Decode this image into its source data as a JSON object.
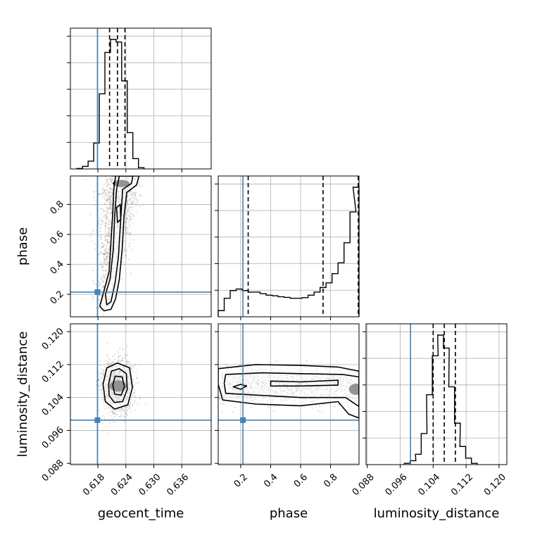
{
  "chart_data": {
    "type": "corner",
    "parameters": [
      "geocent_time",
      "phase",
      "luminosity_distance"
    ],
    "truths": {
      "geocent_time": 0.6179,
      "phase": 0.215,
      "luminosity_distance": 0.0985
    },
    "quantile_lines": {
      "geocent_time": [
        0.6205,
        0.6222,
        0.6238
      ],
      "phase": [
        0.25,
        0.75,
        0.985
      ],
      "luminosity_distance": [
        0.104,
        0.1067,
        0.1094
      ]
    },
    "axes": {
      "geocent_time": {
        "range": [
          0.6121,
          0.6423
        ],
        "ticks": [
          0.618,
          0.624,
          0.63,
          0.636
        ],
        "tick_labels": [
          "0.618",
          "0.624",
          "0.630",
          "0.636"
        ],
        "label": "geocent_time"
      },
      "phase": {
        "range": [
          0.05,
          0.99
        ],
        "ticks": [
          0.2,
          0.4,
          0.6,
          0.8
        ],
        "tick_labels": [
          "0.2",
          "0.4",
          "0.6",
          "0.8"
        ],
        "label": "phase"
      },
      "luminosity_distance": {
        "range": [
          0.0877,
          0.1219
        ],
        "ticks": [
          0.088,
          0.096,
          0.104,
          0.112,
          0.12
        ],
        "tick_labels": [
          "0.088",
          "0.096",
          "0.104",
          "0.112",
          "0.120"
        ],
        "label": "luminosity_distance"
      }
    },
    "histograms": {
      "geocent_time": {
        "x": [
          0.6141,
          0.6153,
          0.6165,
          0.6177,
          0.6189,
          0.6201,
          0.6213,
          0.6225,
          0.6237,
          0.6249,
          0.6261,
          0.6273
        ],
        "values": [
          0.2,
          1.0,
          3.0,
          10.0,
          29.0,
          45.0,
          50.0,
          49.0,
          34.0,
          14.0,
          4.0,
          0.5
        ]
      },
      "phase": {
        "x": [
          0.07,
          0.11,
          0.15,
          0.19,
          0.23,
          0.27,
          0.31,
          0.35,
          0.39,
          0.43,
          0.47,
          0.51,
          0.55,
          0.59,
          0.63,
          0.67,
          0.71,
          0.75,
          0.79,
          0.83,
          0.87,
          0.91,
          0.95,
          0.97
        ],
        "values": [
          2.0,
          6.0,
          8.5,
          9.0,
          8.5,
          8.0,
          8.0,
          7.5,
          7.0,
          6.8,
          6.5,
          6.3,
          6.0,
          6.0,
          6.2,
          7.0,
          8.0,
          9.5,
          11.0,
          14.0,
          17.5,
          24.0,
          34.0,
          42.0
        ]
      },
      "luminosity_distance": {
        "x": [
          0.0977,
          0.0991,
          0.1004,
          0.1018,
          0.1031,
          0.1045,
          0.1058,
          0.1072,
          0.1085,
          0.1099,
          0.1112,
          0.1126,
          0.114
        ],
        "values": [
          0.5,
          1.5,
          4.0,
          12.0,
          27.0,
          42.0,
          50.0,
          45.0,
          30.0,
          16.0,
          7.0,
          2.5,
          0.5
        ]
      }
    },
    "density_2d": {
      "phase_vs_geocent_time": {
        "x": "geocent_time",
        "y": "phase",
        "peak": [
          0.623,
          0.94
        ]
      },
      "luminosity_distance_vs_geocent_time": {
        "x": "geocent_time",
        "y": "luminosity_distance",
        "peak": [
          0.6223,
          0.1068
        ]
      },
      "luminosity_distance_vs_phase": {
        "x": "phase",
        "y": "luminosity_distance",
        "peak": [
          0.97,
          0.106
        ]
      }
    },
    "grid": true,
    "colors": {
      "truth": "#4682b4",
      "histogram": "#000000",
      "contours": "#000000",
      "grid": "#b0b0b0",
      "samples": "#9a9a9a"
    }
  }
}
